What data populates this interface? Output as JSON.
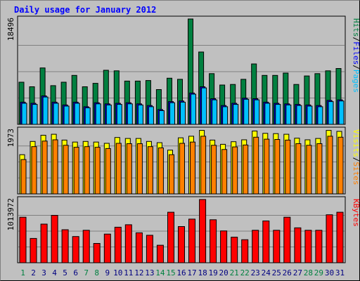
{
  "title": "Daily usage for January 2012",
  "colors": {
    "title": "#0000ff",
    "pages": "#00c0ff",
    "files": "#0000ff",
    "hits": "#008040",
    "sites": "#ff8000",
    "visits": "#ffff00",
    "kbytes": "#ff0000",
    "day_weekday": "#000080",
    "day_weekend": "#008040",
    "separator": "#000000"
  },
  "chart_data": {
    "type": "bar",
    "title": "Daily usage for January 2012",
    "categories": [
      "1",
      "2",
      "3",
      "4",
      "5",
      "6",
      "7",
      "8",
      "9",
      "10",
      "11",
      "12",
      "13",
      "14",
      "15",
      "16",
      "17",
      "18",
      "19",
      "20",
      "21",
      "22",
      "23",
      "24",
      "25",
      "26",
      "27",
      "28",
      "29",
      "30",
      "31"
    ],
    "weekend_days": [
      "1",
      "7",
      "8",
      "14",
      "15",
      "21",
      "22",
      "28",
      "29"
    ],
    "panels": [
      {
        "name": "hits-files-pages",
        "max_label": "18496",
        "ymax": 18496,
        "legend": [
          "Pages",
          "Files",
          "Hits"
        ],
        "legend_sep": "/",
        "series": [
          {
            "name": "Hits",
            "values": [
              7400,
              6600,
              9900,
              6800,
              7400,
              8600,
              6600,
              7200,
              9500,
              9400,
              7600,
              7600,
              7700,
              6100,
              8100,
              7900,
              18496,
              12700,
              8900,
              6900,
              7000,
              7900,
              10600,
              8600,
              8600,
              9000,
              7000,
              8500,
              8900,
              9400,
              9800
            ]
          },
          {
            "name": "Files",
            "values": [
              3900,
              3700,
              5000,
              3900,
              3400,
              3900,
              3100,
              3800,
              3600,
              3700,
              3800,
              3600,
              3300,
              2600,
              4000,
              4100,
              5500,
              6600,
              4500,
              3300,
              3700,
              4600,
              4500,
              3900,
              3700,
              3600,
              3500,
              3400,
              3300,
              4200,
              4300
            ]
          },
          {
            "name": "Pages",
            "values": [
              3700,
              3500,
              4800,
              3700,
              3200,
              3700,
              2900,
              3600,
              3400,
              3500,
              3600,
              3400,
              3100,
              2400,
              3800,
              3900,
              5300,
              6400,
              4300,
              3100,
              3500,
              4400,
              4300,
              3700,
              3500,
              3400,
              3300,
              3200,
              3100,
              4000,
              4100
            ]
          }
        ]
      },
      {
        "name": "visits-sites",
        "max_label": "1973",
        "ymax": 1973,
        "legend": [
          "Sites",
          "Visits"
        ],
        "legend_sep": "/",
        "series": [
          {
            "name": "Visits",
            "values": [
              1210,
              1620,
              1810,
              1840,
              1660,
              1600,
              1620,
              1600,
              1560,
              1740,
              1710,
              1710,
              1620,
              1580,
              1350,
              1730,
              1780,
              1960,
              1660,
              1530,
              1610,
              1670,
              1940,
              1870,
              1860,
              1840,
              1720,
              1670,
              1710,
              1960,
              1930
            ]
          },
          {
            "name": "Sites",
            "values": [
              1060,
              1460,
              1630,
              1670,
              1500,
              1440,
              1460,
              1440,
              1400,
              1560,
              1550,
              1550,
              1460,
              1420,
              1210,
              1560,
              1600,
              1780,
              1500,
              1370,
              1450,
              1510,
              1750,
              1690,
              1680,
              1660,
              1550,
              1500,
              1550,
              1780,
              1750
            ]
          }
        ]
      },
      {
        "name": "kbytes",
        "max_label": "1013972",
        "ymax": 1013972,
        "legend": [
          "KBytes"
        ],
        "legend_sep": "",
        "series": [
          {
            "name": "KBytes",
            "values": [
              730000,
              390000,
              620000,
              760000,
              530000,
              420000,
              520000,
              310000,
              460000,
              570000,
              610000,
              480000,
              440000,
              280000,
              810000,
              580000,
              700000,
              1013972,
              690000,
              510000,
              410000,
              370000,
              520000,
              670000,
              520000,
              730000,
              560000,
              520000,
              520000,
              770000,
              810000
            ]
          }
        ]
      }
    ]
  }
}
